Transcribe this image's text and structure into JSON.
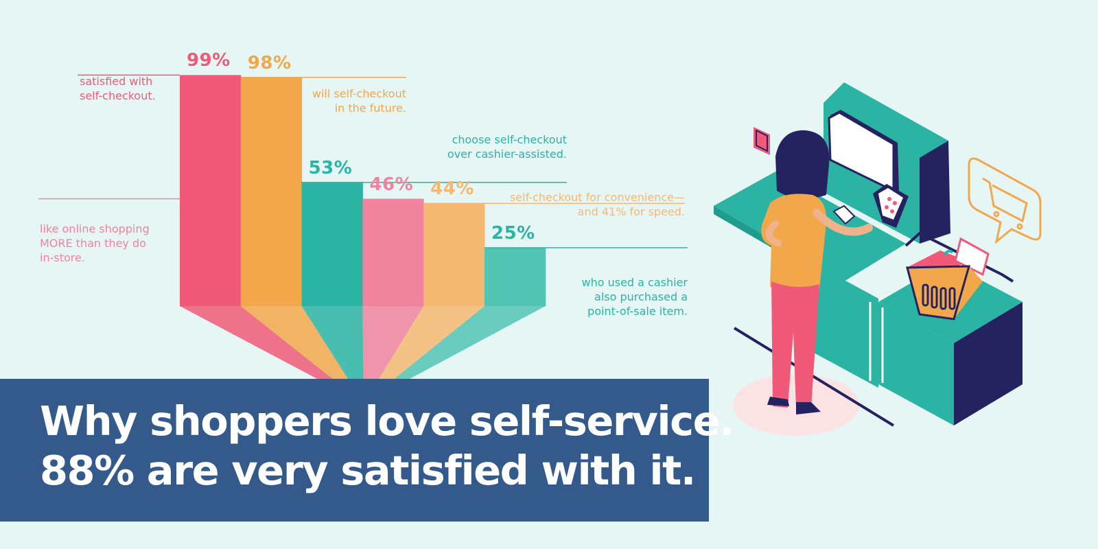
{
  "colors": {
    "background": "#e6f6f5",
    "banner": "#335a8b",
    "pink": "#f05a78",
    "orange": "#f2a74a",
    "teal": "#2bb3a3",
    "pink_light": "#f0839e",
    "orange_light": "#f5b870",
    "teal_light": "#52c4b4"
  },
  "chart_data": {
    "type": "bar",
    "categories": [
      "satisfied with self-checkout.",
      "will self-checkout in the future.",
      "choose self-checkout over cashier-assisted.",
      "like online shopping MORE than they do in-store.",
      "self-checkout for convenience— and 41% for speed.",
      "who used a cashier also purchased a point-of-sale item."
    ],
    "values": [
      99,
      98,
      53,
      46,
      44,
      25
    ],
    "value_labels": [
      "99%",
      "98%",
      "53%",
      "46%",
      "44%",
      "25%"
    ],
    "unit": "%",
    "ylim": [
      0,
      100
    ],
    "grid": false,
    "legend": "none",
    "descriptions": [
      [
        "satisfied with",
        "self-checkout."
      ],
      [
        "will self-checkout",
        "in the future."
      ],
      [
        "choose self-checkout",
        "over cashier-assisted."
      ],
      [
        "like online shopping",
        "MORE than they do",
        "in-store."
      ],
      [
        "self-checkout for convenience—",
        "and 41% for speed."
      ],
      [
        "who used a cashier",
        "also purchased a",
        "point-of-sale item."
      ]
    ],
    "bar_colors": [
      "#f05a78",
      "#f2a74a",
      "#2bb3a3",
      "#f0839e",
      "#f5b870",
      "#52c4b4"
    ],
    "text_colors": [
      "#f05a78",
      "#f2a74a",
      "#2bb3a3",
      "#f0839e",
      "#f5b870",
      "#2bb3a3"
    ]
  },
  "headline": {
    "line1": "Why shoppers love self-service.",
    "line2": "88% are very satisfied with it."
  },
  "illustration": {
    "name": "shopper at self-checkout kiosk",
    "icons": [
      "shopping-cart-speech-bubble-icon",
      "basket-icon",
      "card-reader-icon"
    ]
  }
}
